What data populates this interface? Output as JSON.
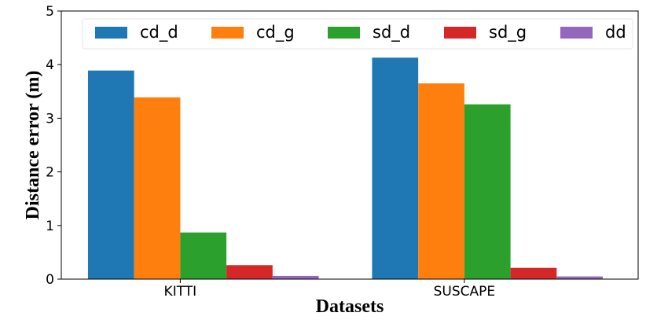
{
  "chart_data": {
    "type": "bar",
    "title": "",
    "xlabel": "Datasets",
    "ylabel": "Distance error (m)",
    "categories": [
      "KITTI",
      "SUSCAPE"
    ],
    "ylim": [
      0,
      5
    ],
    "yticks": [
      0,
      1,
      2,
      3,
      4,
      5
    ],
    "legend_position": "top",
    "series": [
      {
        "name": "cd_d",
        "color": "#1f77b4",
        "values": [
          3.89,
          4.13
        ]
      },
      {
        "name": "cd_g",
        "color": "#ff7f0e",
        "values": [
          3.39,
          3.65
        ]
      },
      {
        "name": "sd_d",
        "color": "#2ca02c",
        "values": [
          0.87,
          3.26
        ]
      },
      {
        "name": "sd_g",
        "color": "#d62728",
        "values": [
          0.26,
          0.21
        ]
      },
      {
        "name": "dd",
        "color": "#9467bd",
        "values": [
          0.06,
          0.05
        ]
      }
    ]
  }
}
